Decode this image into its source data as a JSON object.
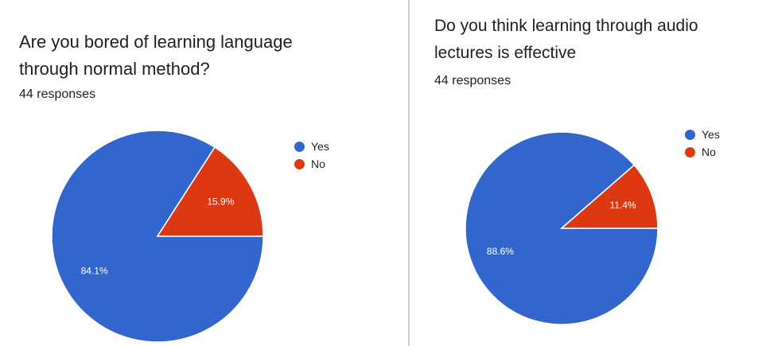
{
  "charts": [
    {
      "title": "Are you bored of learning language through normal method?",
      "responses": "44 responses"
    },
    {
      "title": "Do you think learning through audio lectures is effective",
      "responses": "44 responses"
    }
  ],
  "colors": {
    "yes": "#3366cc",
    "no": "#dc3912"
  },
  "chart_data": [
    {
      "type": "pie",
      "title": "Are you bored of learning language through normal method?",
      "categories": [
        "Yes",
        "No"
      ],
      "values": [
        84.1,
        15.9
      ],
      "labels": [
        "84.1%",
        "15.9%"
      ],
      "legend": [
        "Yes",
        "No"
      ],
      "legend_position": "top-right",
      "colors": [
        "#3366cc",
        "#dc3912"
      ]
    },
    {
      "type": "pie",
      "title": "Do you think learning through audio lectures is effective",
      "categories": [
        "Yes",
        "No"
      ],
      "values": [
        88.6,
        11.4
      ],
      "labels": [
        "88.6%",
        "11.4%"
      ],
      "legend": [
        "Yes",
        "No"
      ],
      "legend_position": "top-right",
      "colors": [
        "#3366cc",
        "#dc3912"
      ]
    }
  ]
}
